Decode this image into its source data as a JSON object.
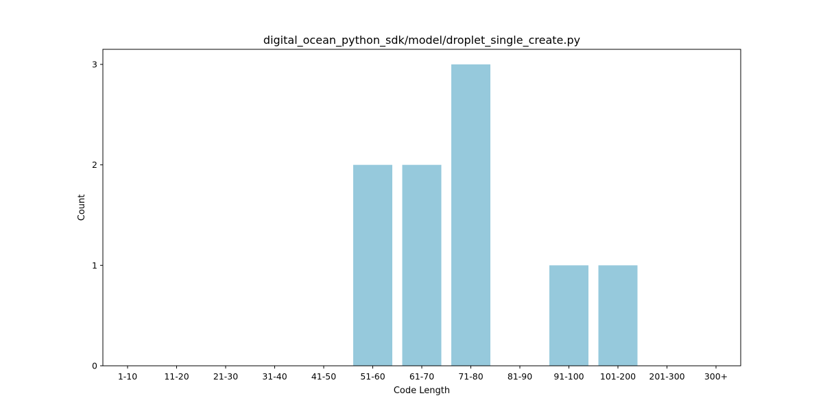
{
  "chart_data": {
    "type": "bar",
    "title": "digital_ocean_python_sdk/model/droplet_single_create.py",
    "xlabel": "Code Length",
    "ylabel": "Count",
    "categories": [
      "1-10",
      "11-20",
      "21-30",
      "31-40",
      "41-50",
      "51-60",
      "61-70",
      "71-80",
      "81-90",
      "91-100",
      "101-200",
      "201-300",
      "300+"
    ],
    "values": [
      0,
      0,
      0,
      0,
      0,
      2,
      2,
      3,
      0,
      1,
      1,
      0,
      0
    ],
    "ylim": [
      0,
      3.15
    ],
    "yticks": [
      0,
      1,
      2,
      3
    ],
    "bar_color": "#96c9dc",
    "grid": false,
    "legend": "none"
  }
}
